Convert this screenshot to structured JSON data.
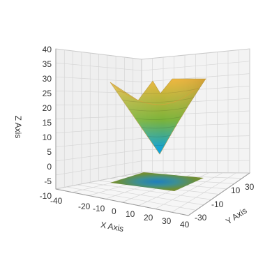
{
  "chart_data": {
    "type": "surface3d",
    "title": "",
    "surface": {
      "function": "sqrt(x^2 + y^2)",
      "x_range": [
        -30,
        30
      ],
      "y_range": [
        -30,
        30
      ],
      "z_range": [
        0,
        42
      ]
    },
    "axes": {
      "x": {
        "label": "X Axis",
        "range": [
          -40,
          40
        ],
        "ticks": [
          "-40",
          "-20",
          "-10",
          "0",
          "10",
          "20",
          "30",
          "40"
        ]
      },
      "y": {
        "label": "Y Axis",
        "range": [
          -30,
          30
        ],
        "ticks": [
          "-30",
          "-10",
          "10",
          "30"
        ]
      },
      "z": {
        "label": "Z Axis",
        "range": [
          -10,
          40
        ],
        "ticks": [
          "-10",
          "-5",
          "0",
          "5",
          "10",
          "15",
          "20",
          "25",
          "30",
          "35",
          "40"
        ]
      }
    },
    "grid": true,
    "floor_projection": true,
    "colors": {
      "low": "#00a0f0",
      "mid": "#7ab33a",
      "high": "#f0b63c",
      "wall": "#eeeeee",
      "grid": "#d6d6d6",
      "axis": "#999999"
    }
  }
}
